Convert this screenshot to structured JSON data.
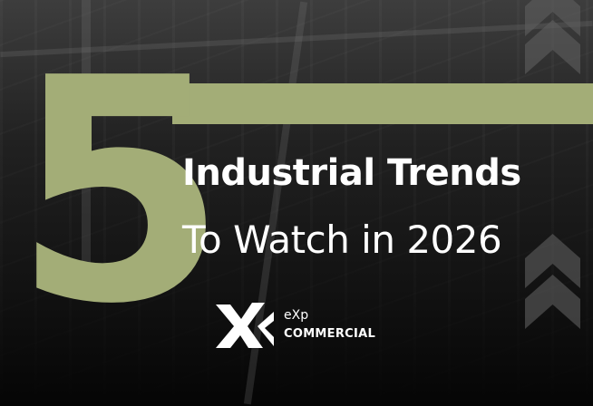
{
  "headline": {
    "number": "5",
    "line1": "Industrial Trends",
    "line2": "To Watch in 2026"
  },
  "brand": {
    "name_top": "eXp",
    "name_bottom": "COMMERCIAL",
    "icon": "exp-x-logo"
  },
  "colors": {
    "accent": "#a3ad77",
    "text": "#ffffff",
    "background": "#0b0b0b"
  }
}
